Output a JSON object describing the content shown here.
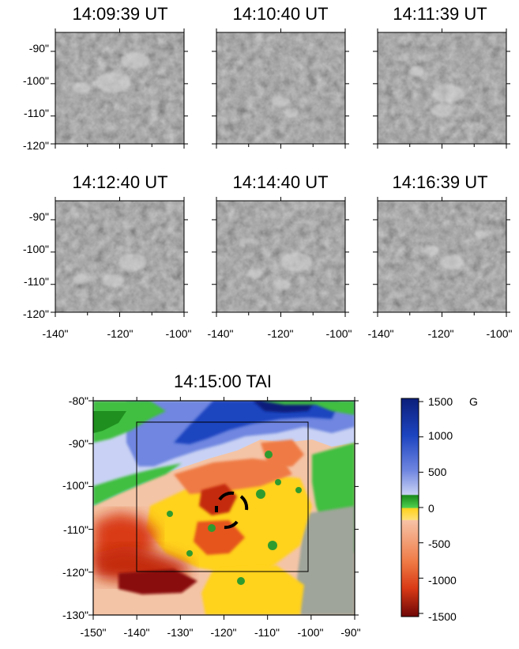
{
  "figure": {
    "panels": [
      {
        "title": "14:09:39 UT"
      },
      {
        "title": "14:10:40 UT"
      },
      {
        "title": "14:11:39 UT"
      },
      {
        "title": "14:12:40 UT"
      },
      {
        "title": "14:14:40 UT"
      },
      {
        "title": "14:16:39 UT"
      }
    ],
    "small_y_ticks": [
      "-90\"",
      "-100\"",
      "-110\"",
      "-120\""
    ],
    "small_x_ticks": [
      "-140\"",
      "-120\"",
      "-100\""
    ],
    "magnetogram": {
      "title": "14:15:00 TAI",
      "y_ticks": [
        "-80\"",
        "-90\"",
        "-100\"",
        "-110\"",
        "-120\"",
        "-130\""
      ],
      "x_ticks": [
        "-150\"",
        "-140\"",
        "-130\"",
        "-120\"",
        "-110\"",
        "-100\"",
        "-90\""
      ]
    },
    "colorbar": {
      "unit": "G",
      "labels": [
        "1500",
        "1000",
        "500",
        "0",
        "-500",
        "-1000",
        "-1500"
      ],
      "colors": [
        "#0c1f7a",
        "#1d44c0",
        "#6f86e0",
        "#c9d2f4",
        "#2f9b2f",
        "#43c443",
        "#ffd21e",
        "#f3a470",
        "#e5551c",
        "#7a0a0a"
      ]
    },
    "colors": {
      "frame": "#000000",
      "mosaic_bg": "#3a3a3a",
      "feature": "#d9d9d9"
    }
  },
  "chart_data": [
    {
      "type": "image",
      "title": "14:09:39 UT",
      "xlim": [
        -140,
        -100
      ],
      "ylim": [
        -120,
        -85
      ]
    },
    {
      "type": "image",
      "title": "14:10:40 UT",
      "xlim": [
        -140,
        -100
      ],
      "ylim": [
        -120,
        -85
      ]
    },
    {
      "type": "image",
      "title": "14:11:39 UT",
      "xlim": [
        -140,
        -100
      ],
      "ylim": [
        -120,
        -85
      ]
    },
    {
      "type": "image",
      "title": "14:12:40 UT",
      "xlim": [
        -140,
        -100
      ],
      "ylim": [
        -120,
        -85
      ]
    },
    {
      "type": "image",
      "title": "14:14:40 UT",
      "xlim": [
        -140,
        -100
      ],
      "ylim": [
        -120,
        -85
      ]
    },
    {
      "type": "image",
      "title": "14:16:39 UT",
      "xlim": [
        -140,
        -100
      ],
      "ylim": [
        -120,
        -85
      ]
    },
    {
      "type": "heatmap",
      "title": "14:15:00 TAI",
      "xlim": [
        -150,
        -90
      ],
      "ylim": [
        -130,
        -80
      ],
      "colorbar": {
        "range": [
          -1500,
          1500
        ],
        "unit": "G"
      },
      "box": {
        "x": [
          -140,
          -100
        ],
        "y": [
          -120,
          -85
        ]
      }
    }
  ]
}
